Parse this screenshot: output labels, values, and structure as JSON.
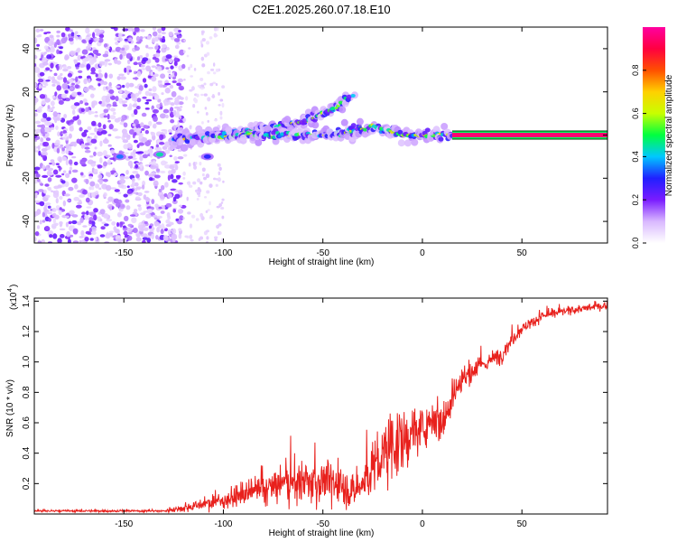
{
  "title": "C2E1.2025.260.07.18.E10",
  "chart_data": [
    {
      "type": "heatmap",
      "title": "C2E1.2025.260.07.18.E10",
      "xlabel": "Height of straight line (km)",
      "ylabel": "Frequency (Hz)",
      "xlim": [
        -195,
        93
      ],
      "ylim": [
        -50,
        50
      ],
      "xticks": [
        -150,
        -100,
        -50,
        0,
        50
      ],
      "xtick_labels": [
        "-150",
        "-100",
        "-50",
        "0",
        "50"
      ],
      "yticks": [
        -40,
        -20,
        0,
        20,
        40
      ],
      "ytick_labels": [
        "-40",
        "-20",
        "0",
        "20",
        "40"
      ],
      "colorbar": {
        "label": "Normalized spectral amplitude",
        "range": [
          0,
          1
        ],
        "ticks": [
          0.0,
          0.2,
          0.4,
          0.6,
          0.8
        ],
        "tick_labels": [
          "0.0",
          "0.2",
          "0.4",
          "0.6",
          "0.8"
        ],
        "colormap": [
          "#ffffff",
          "#d9b8ff",
          "#7a1cff",
          "#2020ff",
          "#00c8ff",
          "#00ff40",
          "#c8ff00",
          "#ffd000",
          "#ff5000",
          "#ff0040",
          "#ff00a0"
        ]
      },
      "features": {
        "noise_region_x": [
          -195,
          -120
        ],
        "sparse_noise_x": [
          -120,
          -100
        ],
        "constant_line": {
          "x_start": 15,
          "x_end": 93,
          "freq": 0,
          "amplitude": 0.95
        },
        "upper_branch": {
          "x": [
            -125,
            -100,
            -80,
            -60,
            -45,
            -35
          ],
          "freq": [
            -2,
            0,
            3,
            6,
            12,
            18
          ]
        },
        "lower_branch": {
          "x": [
            -125,
            -90,
            -60,
            -40,
            -25,
            -10,
            15
          ],
          "freq": [
            -2,
            0,
            0,
            1,
            4,
            0,
            0
          ]
        },
        "early_blobs": [
          {
            "x": -152,
            "freq": -10,
            "amplitude": 0.35
          },
          {
            "x": -132,
            "freq": -9,
            "amplitude": 0.45
          },
          {
            "x": -108,
            "freq": -10,
            "amplitude": 0.3
          }
        ]
      }
    },
    {
      "type": "line",
      "xlabel": "Height of straight line (km)",
      "ylabel": "SNR (10 * v/v)",
      "y_scale_label": "(x10",
      "y_scale_exponent": "4",
      "xlim": [
        -195,
        93
      ],
      "ylim": [
        0,
        1.42
      ],
      "xticks": [
        -150,
        -100,
        -50,
        0,
        50
      ],
      "xtick_labels": [
        "-150",
        "-100",
        "-50",
        "0",
        "50"
      ],
      "yticks": [
        0.2,
        0.4,
        0.6,
        0.8,
        1.0,
        1.2,
        1.4
      ],
      "ytick_labels": [
        "0.2",
        "0.4",
        "0.6",
        "0.8",
        "1.0",
        "1.2",
        "1.4"
      ],
      "color": "#e8201c",
      "envelope": {
        "x": [
          -195,
          -130,
          -120,
          -100,
          -80,
          -70,
          -60,
          -50,
          -40,
          -35,
          -30,
          -25,
          -20,
          -15,
          -10,
          -5,
          0,
          5,
          10,
          15,
          20,
          25,
          30,
          40,
          45,
          50,
          55,
          60,
          70,
          80,
          93
        ],
        "mean": [
          0.02,
          0.02,
          0.04,
          0.09,
          0.16,
          0.2,
          0.2,
          0.22,
          0.18,
          0.14,
          0.2,
          0.3,
          0.36,
          0.48,
          0.45,
          0.55,
          0.55,
          0.65,
          0.6,
          0.78,
          0.88,
          0.93,
          0.98,
          1.05,
          1.15,
          1.22,
          1.26,
          1.3,
          1.33,
          1.35,
          1.37
        ],
        "noise": [
          0.006,
          0.006,
          0.02,
          0.04,
          0.08,
          0.1,
          0.1,
          0.12,
          0.1,
          0.08,
          0.12,
          0.14,
          0.18,
          0.2,
          0.16,
          0.14,
          0.1,
          0.1,
          0.14,
          0.1,
          0.08,
          0.06,
          0.05,
          0.04,
          0.04,
          0.03,
          0.025,
          0.025,
          0.02,
          0.02,
          0.02
        ]
      }
    }
  ]
}
